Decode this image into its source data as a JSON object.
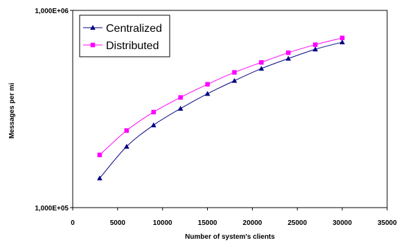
{
  "chart_data": {
    "type": "line",
    "title": "",
    "xlabel": "Number of system's clients",
    "ylabel": "Messages per mi",
    "xlim": [
      0,
      35000
    ],
    "ylim": [
      100000,
      1000000
    ],
    "y_scale": "log",
    "grid": false,
    "legend_position": "top-left",
    "x_ticks": [
      0,
      5000,
      10000,
      15000,
      20000,
      25000,
      30000,
      35000
    ],
    "x_tick_labels": [
      "0",
      "5000",
      "10000",
      "15000",
      "20000",
      "25000",
      "30000",
      "35000"
    ],
    "y_ticks": [
      100000,
      1000000
    ],
    "y_tick_labels": [
      "1,000E+05",
      "1,000E+06"
    ],
    "series": [
      {
        "name": "Centralized",
        "color": "#000080",
        "marker": "triangle",
        "x": [
          3000,
          6000,
          9000,
          12000,
          15000,
          18000,
          21000,
          24000,
          27000,
          30000
        ],
        "y": [
          141000,
          204000,
          262000,
          318000,
          378000,
          440000,
          507000,
          570000,
          635000,
          690000
        ]
      },
      {
        "name": "Distributed",
        "color": "#FF00FF",
        "marker": "square",
        "x": [
          3000,
          6000,
          9000,
          12000,
          15000,
          18000,
          21000,
          24000,
          27000,
          30000
        ],
        "y": [
          185000,
          246000,
          305000,
          362000,
          422000,
          485000,
          545000,
          610000,
          670000,
          725000
        ]
      }
    ]
  }
}
